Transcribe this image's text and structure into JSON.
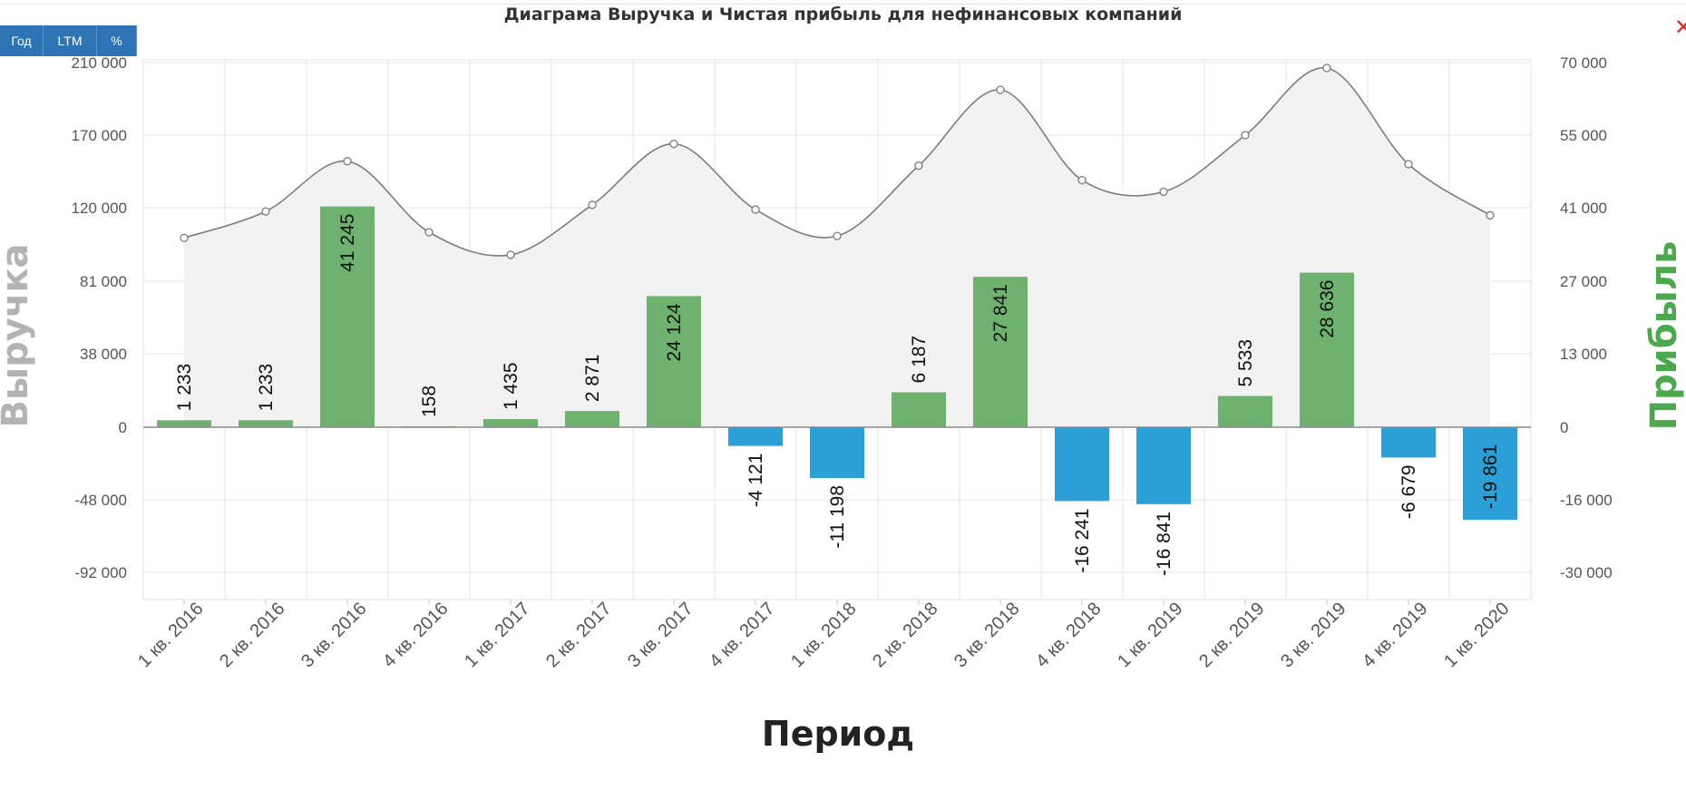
{
  "toolbar": {
    "buttons": [
      "Год",
      "LTM",
      "%"
    ]
  },
  "colors": {
    "positive_bar": "#6fb26f",
    "negative_bar": "#2b9fd6",
    "revenue_line": "#7d7d7d",
    "revenue_area": "#f2f2f2",
    "close_icon": "#d9292e"
  },
  "chart_data": {
    "type": "bar",
    "title": "Диаграма Выручка и Чистая прибыль для нефинансовых компаний",
    "xlabel": "Период",
    "ylabel_left": "Выручка",
    "ylabel_right": "Прибыль",
    "categories": [
      "1 кв. 2016",
      "2 кв. 2016",
      "3 кв. 2016",
      "4 кв. 2016",
      "1 кв. 2017",
      "2 кв. 2017",
      "3 кв. 2017",
      "4 кв. 2017",
      "1 кв. 2018",
      "2 кв. 2018",
      "3 кв. 2018",
      "4 кв. 2018",
      "1 кв. 2019",
      "2 кв. 2019",
      "3 кв. 2019",
      "4 кв. 2019",
      "1 кв. 2020"
    ],
    "left_ticks": [
      "210 000",
      "170 000",
      "120 000",
      "81 000",
      "38 000",
      "0",
      "-48 000",
      "-92 000"
    ],
    "right_ticks": [
      "70 000",
      "55 000",
      "41 000",
      "27 000",
      "13 000",
      "0",
      "-16 000",
      "-30 000"
    ],
    "series": [
      {
        "name": "Выручка",
        "type": "area-spline",
        "axis": "left",
        "values": [
          104000,
          118000,
          152000,
          107000,
          95000,
          122000,
          164000,
          119000,
          105000,
          149000,
          195000,
          139000,
          131000,
          170000,
          207000,
          150000,
          116000
        ]
      },
      {
        "name": "Прибыль",
        "type": "bar",
        "axis": "right",
        "values": [
          1233,
          1233,
          41245,
          158,
          1435,
          2871,
          24124,
          -4121,
          -11198,
          6187,
          27841,
          -16241,
          -16841,
          5533,
          28636,
          -6679,
          -19861
        ],
        "labels": [
          "1 233",
          "1 233",
          "41 245",
          "158",
          "1 435",
          "2 871",
          "24 124",
          "-4 121",
          "-11 198",
          "6 187",
          "27 841",
          "-16 241",
          "-16 841",
          "5 533",
          "28 636",
          "-6 679",
          "-19 861"
        ]
      }
    ],
    "grid": true
  }
}
